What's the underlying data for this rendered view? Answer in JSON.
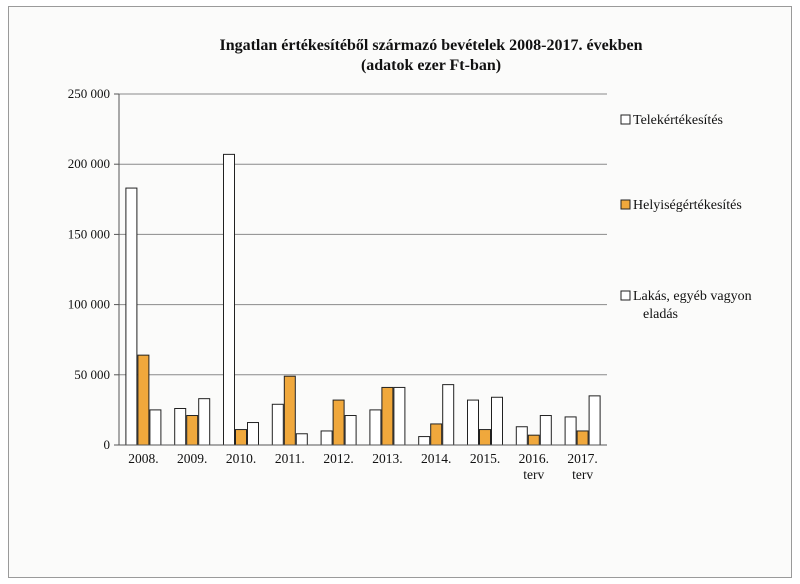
{
  "chart_data": {
    "type": "bar",
    "title": "Ingatlan értékesítéből származó bevételek 2008-2017. években",
    "subtitle": "(adatok ezer Ft-ban)",
    "categories": [
      [
        "2008."
      ],
      [
        "2009."
      ],
      [
        "2010."
      ],
      [
        "2011."
      ],
      [
        "2012."
      ],
      [
        "2013."
      ],
      [
        "2014."
      ],
      [
        "2015."
      ],
      [
        "2016.",
        "terv"
      ],
      [
        "2017.",
        "terv"
      ]
    ],
    "series": [
      {
        "name": "Telekértékesítés",
        "color": "#ffffff",
        "values": [
          183000,
          26000,
          207000,
          29000,
          10000,
          25000,
          6000,
          32000,
          13000,
          20000
        ]
      },
      {
        "name": "Helyiségértékesítés",
        "color": "#f0a83c",
        "values": [
          64000,
          21000,
          11000,
          49000,
          32000,
          41000,
          15000,
          11000,
          7000,
          10000
        ]
      },
      {
        "name": "Lakás, egyéb vagyon eladás",
        "color": "#ffffff",
        "values": [
          25000,
          33000,
          16000,
          8000,
          21000,
          41000,
          43000,
          34000,
          21000,
          35000
        ]
      }
    ],
    "yticks": [
      "0",
      "50 000",
      "100 000",
      "150 000",
      "200 000",
      "250 000"
    ],
    "ylim": [
      0,
      250000
    ],
    "grid": true,
    "legend": "right"
  }
}
